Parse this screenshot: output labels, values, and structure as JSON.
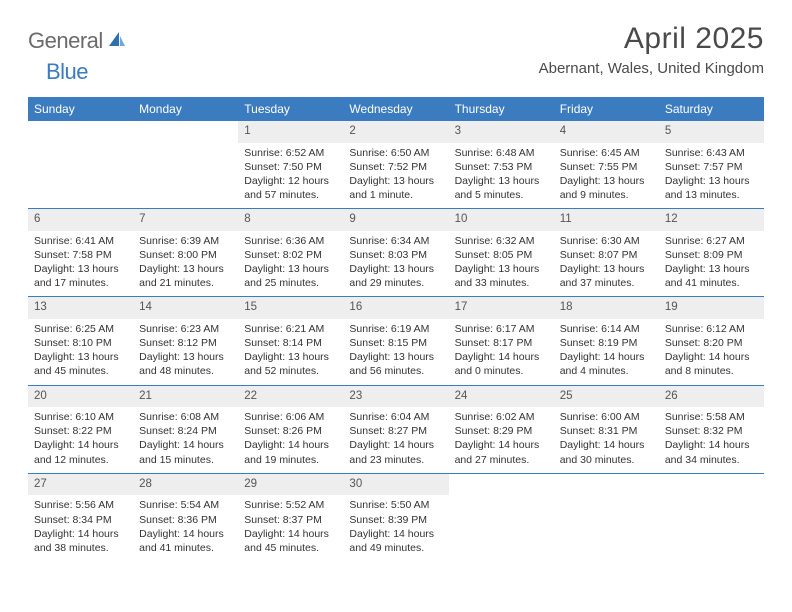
{
  "logo": {
    "text1": "General",
    "text2": "Blue"
  },
  "title": "April 2025",
  "location": "Abernant, Wales, United Kingdom",
  "colors": {
    "header_bg": "#3b7bbf",
    "header_text": "#ffffff",
    "daynum_bg": "#eeeeee",
    "border": "#3b7bbf",
    "body_text": "#333333",
    "logo_gray": "#6b6b6b",
    "logo_blue": "#3b7bbf"
  },
  "day_names": [
    "Sunday",
    "Monday",
    "Tuesday",
    "Wednesday",
    "Thursday",
    "Friday",
    "Saturday"
  ],
  "weeks": [
    [
      null,
      null,
      {
        "n": "1",
        "sr": "Sunrise: 6:52 AM",
        "ss": "Sunset: 7:50 PM",
        "dl": "Daylight: 12 hours and 57 minutes."
      },
      {
        "n": "2",
        "sr": "Sunrise: 6:50 AM",
        "ss": "Sunset: 7:52 PM",
        "dl": "Daylight: 13 hours and 1 minute."
      },
      {
        "n": "3",
        "sr": "Sunrise: 6:48 AM",
        "ss": "Sunset: 7:53 PM",
        "dl": "Daylight: 13 hours and 5 minutes."
      },
      {
        "n": "4",
        "sr": "Sunrise: 6:45 AM",
        "ss": "Sunset: 7:55 PM",
        "dl": "Daylight: 13 hours and 9 minutes."
      },
      {
        "n": "5",
        "sr": "Sunrise: 6:43 AM",
        "ss": "Sunset: 7:57 PM",
        "dl": "Daylight: 13 hours and 13 minutes."
      }
    ],
    [
      {
        "n": "6",
        "sr": "Sunrise: 6:41 AM",
        "ss": "Sunset: 7:58 PM",
        "dl": "Daylight: 13 hours and 17 minutes."
      },
      {
        "n": "7",
        "sr": "Sunrise: 6:39 AM",
        "ss": "Sunset: 8:00 PM",
        "dl": "Daylight: 13 hours and 21 minutes."
      },
      {
        "n": "8",
        "sr": "Sunrise: 6:36 AM",
        "ss": "Sunset: 8:02 PM",
        "dl": "Daylight: 13 hours and 25 minutes."
      },
      {
        "n": "9",
        "sr": "Sunrise: 6:34 AM",
        "ss": "Sunset: 8:03 PM",
        "dl": "Daylight: 13 hours and 29 minutes."
      },
      {
        "n": "10",
        "sr": "Sunrise: 6:32 AM",
        "ss": "Sunset: 8:05 PM",
        "dl": "Daylight: 13 hours and 33 minutes."
      },
      {
        "n": "11",
        "sr": "Sunrise: 6:30 AM",
        "ss": "Sunset: 8:07 PM",
        "dl": "Daylight: 13 hours and 37 minutes."
      },
      {
        "n": "12",
        "sr": "Sunrise: 6:27 AM",
        "ss": "Sunset: 8:09 PM",
        "dl": "Daylight: 13 hours and 41 minutes."
      }
    ],
    [
      {
        "n": "13",
        "sr": "Sunrise: 6:25 AM",
        "ss": "Sunset: 8:10 PM",
        "dl": "Daylight: 13 hours and 45 minutes."
      },
      {
        "n": "14",
        "sr": "Sunrise: 6:23 AM",
        "ss": "Sunset: 8:12 PM",
        "dl": "Daylight: 13 hours and 48 minutes."
      },
      {
        "n": "15",
        "sr": "Sunrise: 6:21 AM",
        "ss": "Sunset: 8:14 PM",
        "dl": "Daylight: 13 hours and 52 minutes."
      },
      {
        "n": "16",
        "sr": "Sunrise: 6:19 AM",
        "ss": "Sunset: 8:15 PM",
        "dl": "Daylight: 13 hours and 56 minutes."
      },
      {
        "n": "17",
        "sr": "Sunrise: 6:17 AM",
        "ss": "Sunset: 8:17 PM",
        "dl": "Daylight: 14 hours and 0 minutes."
      },
      {
        "n": "18",
        "sr": "Sunrise: 6:14 AM",
        "ss": "Sunset: 8:19 PM",
        "dl": "Daylight: 14 hours and 4 minutes."
      },
      {
        "n": "19",
        "sr": "Sunrise: 6:12 AM",
        "ss": "Sunset: 8:20 PM",
        "dl": "Daylight: 14 hours and 8 minutes."
      }
    ],
    [
      {
        "n": "20",
        "sr": "Sunrise: 6:10 AM",
        "ss": "Sunset: 8:22 PM",
        "dl": "Daylight: 14 hours and 12 minutes."
      },
      {
        "n": "21",
        "sr": "Sunrise: 6:08 AM",
        "ss": "Sunset: 8:24 PM",
        "dl": "Daylight: 14 hours and 15 minutes."
      },
      {
        "n": "22",
        "sr": "Sunrise: 6:06 AM",
        "ss": "Sunset: 8:26 PM",
        "dl": "Daylight: 14 hours and 19 minutes."
      },
      {
        "n": "23",
        "sr": "Sunrise: 6:04 AM",
        "ss": "Sunset: 8:27 PM",
        "dl": "Daylight: 14 hours and 23 minutes."
      },
      {
        "n": "24",
        "sr": "Sunrise: 6:02 AM",
        "ss": "Sunset: 8:29 PM",
        "dl": "Daylight: 14 hours and 27 minutes."
      },
      {
        "n": "25",
        "sr": "Sunrise: 6:00 AM",
        "ss": "Sunset: 8:31 PM",
        "dl": "Daylight: 14 hours and 30 minutes."
      },
      {
        "n": "26",
        "sr": "Sunrise: 5:58 AM",
        "ss": "Sunset: 8:32 PM",
        "dl": "Daylight: 14 hours and 34 minutes."
      }
    ],
    [
      {
        "n": "27",
        "sr": "Sunrise: 5:56 AM",
        "ss": "Sunset: 8:34 PM",
        "dl": "Daylight: 14 hours and 38 minutes."
      },
      {
        "n": "28",
        "sr": "Sunrise: 5:54 AM",
        "ss": "Sunset: 8:36 PM",
        "dl": "Daylight: 14 hours and 41 minutes."
      },
      {
        "n": "29",
        "sr": "Sunrise: 5:52 AM",
        "ss": "Sunset: 8:37 PM",
        "dl": "Daylight: 14 hours and 45 minutes."
      },
      {
        "n": "30",
        "sr": "Sunrise: 5:50 AM",
        "ss": "Sunset: 8:39 PM",
        "dl": "Daylight: 14 hours and 49 minutes."
      },
      null,
      null,
      null
    ]
  ]
}
